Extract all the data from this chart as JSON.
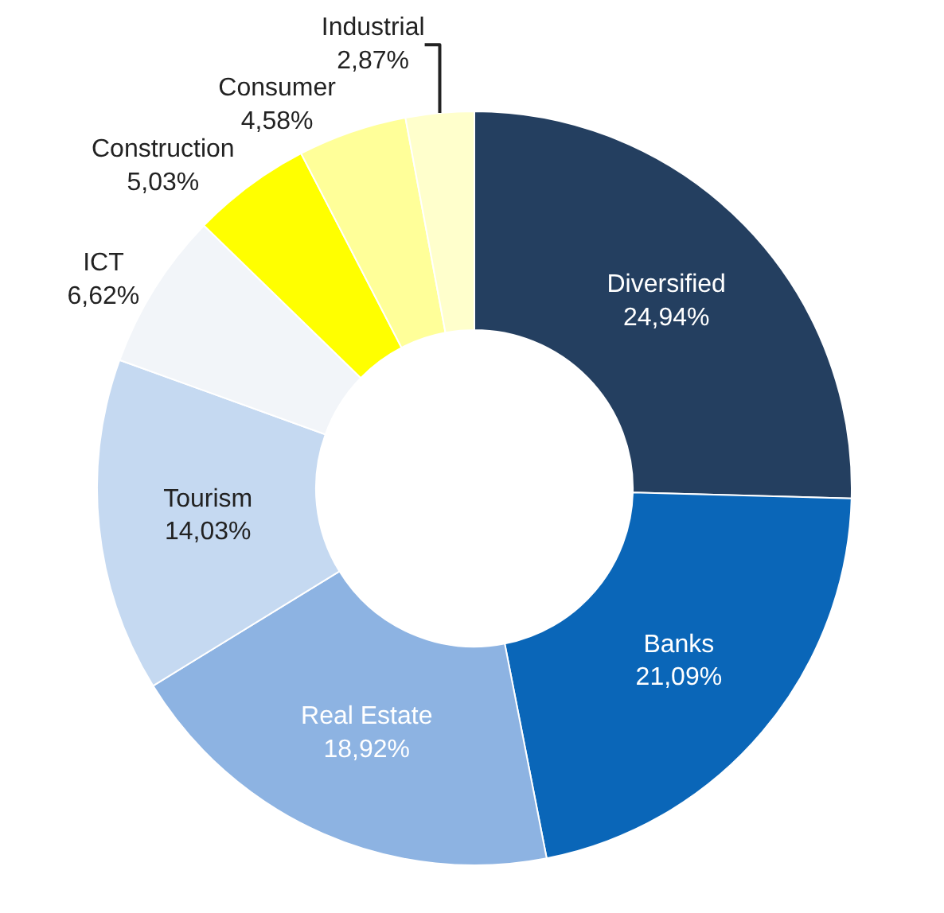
{
  "chart_data": {
    "type": "donut",
    "categories": [
      "Diversified",
      "Banks",
      "Real Estate",
      "Tourism",
      "ICT",
      "Construction",
      "Consumer",
      "Industrial"
    ],
    "values": [
      24.94,
      21.09,
      18.92,
      14.03,
      6.62,
      5.03,
      4.58,
      2.87
    ],
    "value_labels": [
      "24,94%",
      "21,09%",
      "18,92%",
      "14,03%",
      "6,62%",
      "5,03%",
      "4,58%",
      "2,87%"
    ],
    "colors": [
      "#243f60",
      "#0a66b8",
      "#8db3e2",
      "#c5d9f1",
      "#f2f5f9",
      "#ffff00",
      "#ffff99",
      "#ffffcc"
    ],
    "legend": false
  }
}
